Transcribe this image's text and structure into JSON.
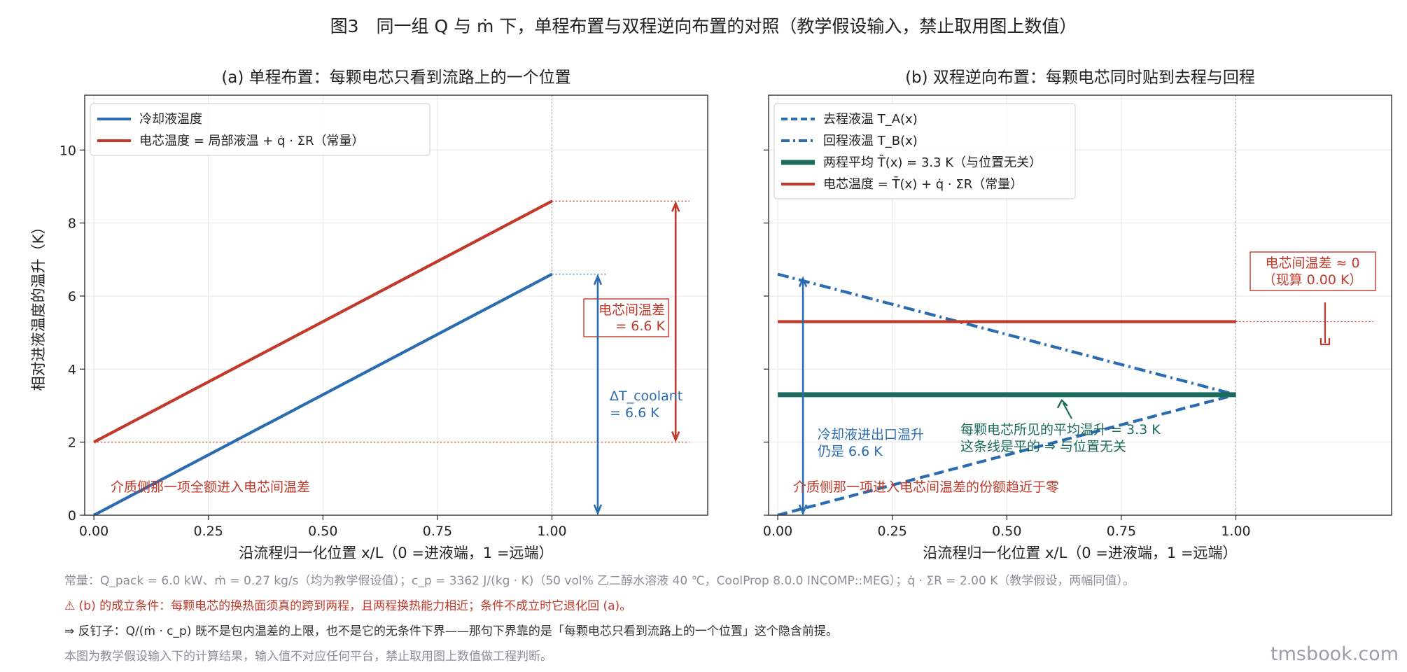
{
  "figure_title": "图3　同一组 Q 与 ṁ 下，单程布置与双程逆向布置的对照（教学假设输入，禁止取用图上数值）",
  "colors": {
    "blue": "#2b6cb0",
    "red": "#c0392b",
    "green": "#1a6b5c",
    "note_gray": "#8a8f98",
    "note_red": "#c0392b",
    "grid": "#e6e6e6"
  },
  "chart_data": [
    {
      "type": "line",
      "title": "(a) 单程布置：每颗电芯只看到流路上的一个位置",
      "xlabel": "沿流程归一化位置 x/L（0 =进液端，1 =远端）",
      "ylabel": "相对进液温度的温升（K）",
      "xlim": [
        -0.02,
        1.34
      ],
      "ylim": [
        0,
        11.5
      ],
      "xticks": [
        "0.00",
        "0.25",
        "0.50",
        "0.75",
        "1.00"
      ],
      "yticks": [
        "0",
        "2",
        "4",
        "6",
        "8",
        "10"
      ],
      "grid": true,
      "legend_position": "top-left",
      "series": [
        {
          "name": "冷却液温度",
          "style": "solid",
          "color": "#2b6cb0",
          "x": [
            0,
            1
          ],
          "y": [
            0,
            6.6
          ]
        },
        {
          "name": "电芯温度 = 局部液温 + q̇ · ΣR（常量）",
          "style": "solid",
          "color": "#c0392b",
          "x": [
            0,
            1
          ],
          "y": [
            2.0,
            8.6
          ]
        }
      ],
      "annotations": {
        "cell_diff": "电芯间温差\n= 6.6 K",
        "coolant_dt": "ΔT_coolant\n= 6.6 K",
        "medium_note": "介质侧那一项全额进入电芯间温差"
      }
    },
    {
      "type": "line",
      "title": "(b) 双程逆向布置：每颗电芯同时贴到去程与回程",
      "xlabel": "沿流程归一化位置 x/L（0 =进液端，1 =远端）",
      "ylabel": "",
      "xlim": [
        -0.02,
        1.34
      ],
      "ylim": [
        0,
        11.5
      ],
      "xticks": [
        "0.00",
        "0.25",
        "0.50",
        "0.75",
        "1.00"
      ],
      "yticks": [
        "0",
        "2",
        "4",
        "6",
        "8",
        "10"
      ],
      "grid": true,
      "legend_position": "top-left",
      "series": [
        {
          "name": "去程液温 T_A(x)",
          "style": "dashed",
          "color": "#2b6cb0",
          "x": [
            0,
            1
          ],
          "y": [
            0,
            3.3
          ]
        },
        {
          "name": "回程液温 T_B(x)",
          "style": "dashdot",
          "color": "#2b6cb0",
          "x": [
            0,
            1
          ],
          "y": [
            6.6,
            3.3
          ]
        },
        {
          "name": "两程平均 T̄(x) = 3.3 K（与位置无关）",
          "style": "solid",
          "color": "#1a6b5c",
          "x": [
            0,
            1
          ],
          "y": [
            3.3,
            3.3
          ]
        },
        {
          "name": "电芯温度 = T̄(x) + q̇ · ΣR（常量）",
          "style": "solid",
          "color": "#c0392b",
          "x": [
            0,
            1
          ],
          "y": [
            5.3,
            5.3
          ]
        }
      ],
      "annotations": {
        "cell_diff": "电芯间温差 ≈ 0\n（现算 0.00 K）",
        "coolant_dt": "冷却液进出口温升\n仍是 6.6 K",
        "avg_note": "每颗电芯所见的平均温升 = 3.3 K\n这条线是平的 ⇒ 与位置无关",
        "medium_note": "介质侧那一项进入电芯间温差的份额趋近于零"
      }
    }
  ],
  "notes": {
    "constants": "常量：Q_pack = 6.0 kW、ṁ = 0.27 kg/s（均为教学假设值）；c_p = 3362 J/(kg · K)（50 vol% 乙二醇水溶液 40 ℃，CoolProp 8.0.0 INCOMP::MEG）；q̇ · ΣR = 2.00 K（教学假设，两幅同值）。",
    "warning": "⚠ (b) 的成立条件：每颗电芯的换热面须真的跨到两程，且两程换热能力相近；条件不成立时它退化回 (a)。",
    "counter": "⇒ 反钉子：Q/(ṁ · c_p) 既不是包内温差的上限，也不是它的无条件下界——那句下界靠的是「每颗电芯只看到流路上的一个位置」这个隐含前提。",
    "disclaimer": "本图为教学假设输入下的计算结果，输入值不对应任何平台，禁止取用图上数值做工程判断。"
  },
  "watermark": "tmsbook.com"
}
